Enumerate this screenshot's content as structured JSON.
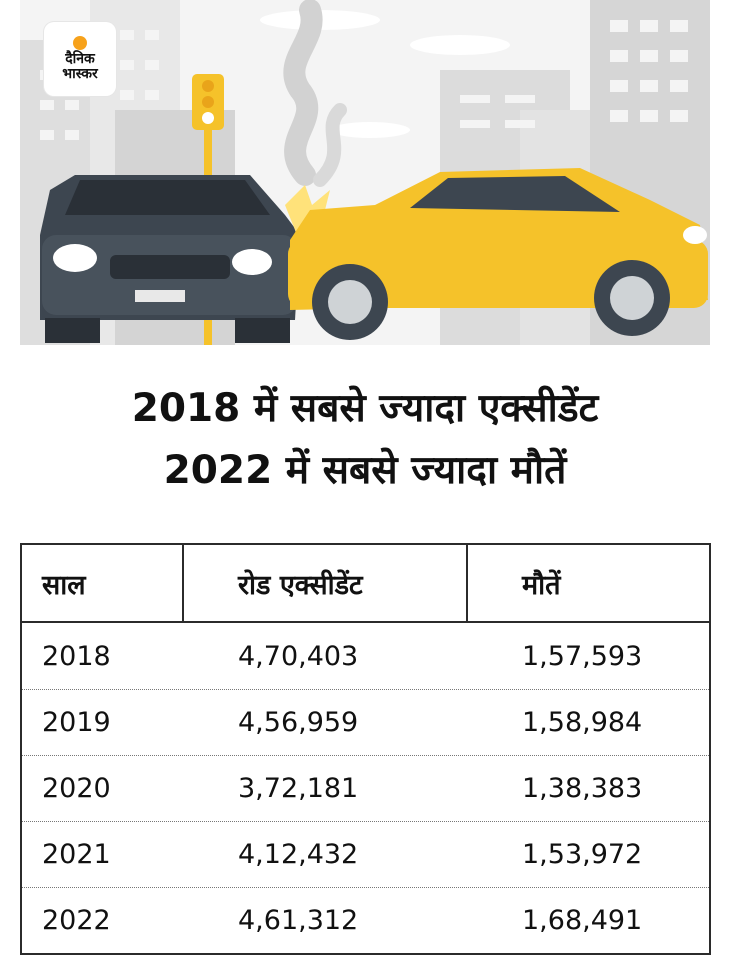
{
  "brand": {
    "logo_line1": "दैनिक",
    "logo_line2": "भास्कर",
    "accent": "#f7a21b"
  },
  "headline": {
    "line1": "2018 में सबसे ज्यादा एक्सीडेंट",
    "line2": "2022 में सबसे ज्यादा मौतें"
  },
  "illustration": {
    "subject": "two-car-collision",
    "car_left_color": "#3d4650",
    "car_right_color": "#f5c22a"
  },
  "chart_data": {
    "type": "table",
    "columns": [
      "साल",
      "रोड एक्सीडेंट",
      "मौतें"
    ],
    "rows": [
      [
        "2018",
        "4,70,403",
        "1,57,593"
      ],
      [
        "2019",
        "4,56,959",
        "1,58,984"
      ],
      [
        "2020",
        "3,72,181",
        "1,38,383"
      ],
      [
        "2021",
        "4,12,432",
        "1,53,972"
      ],
      [
        "2022",
        "4,61,312",
        "1,68,491"
      ]
    ]
  }
}
